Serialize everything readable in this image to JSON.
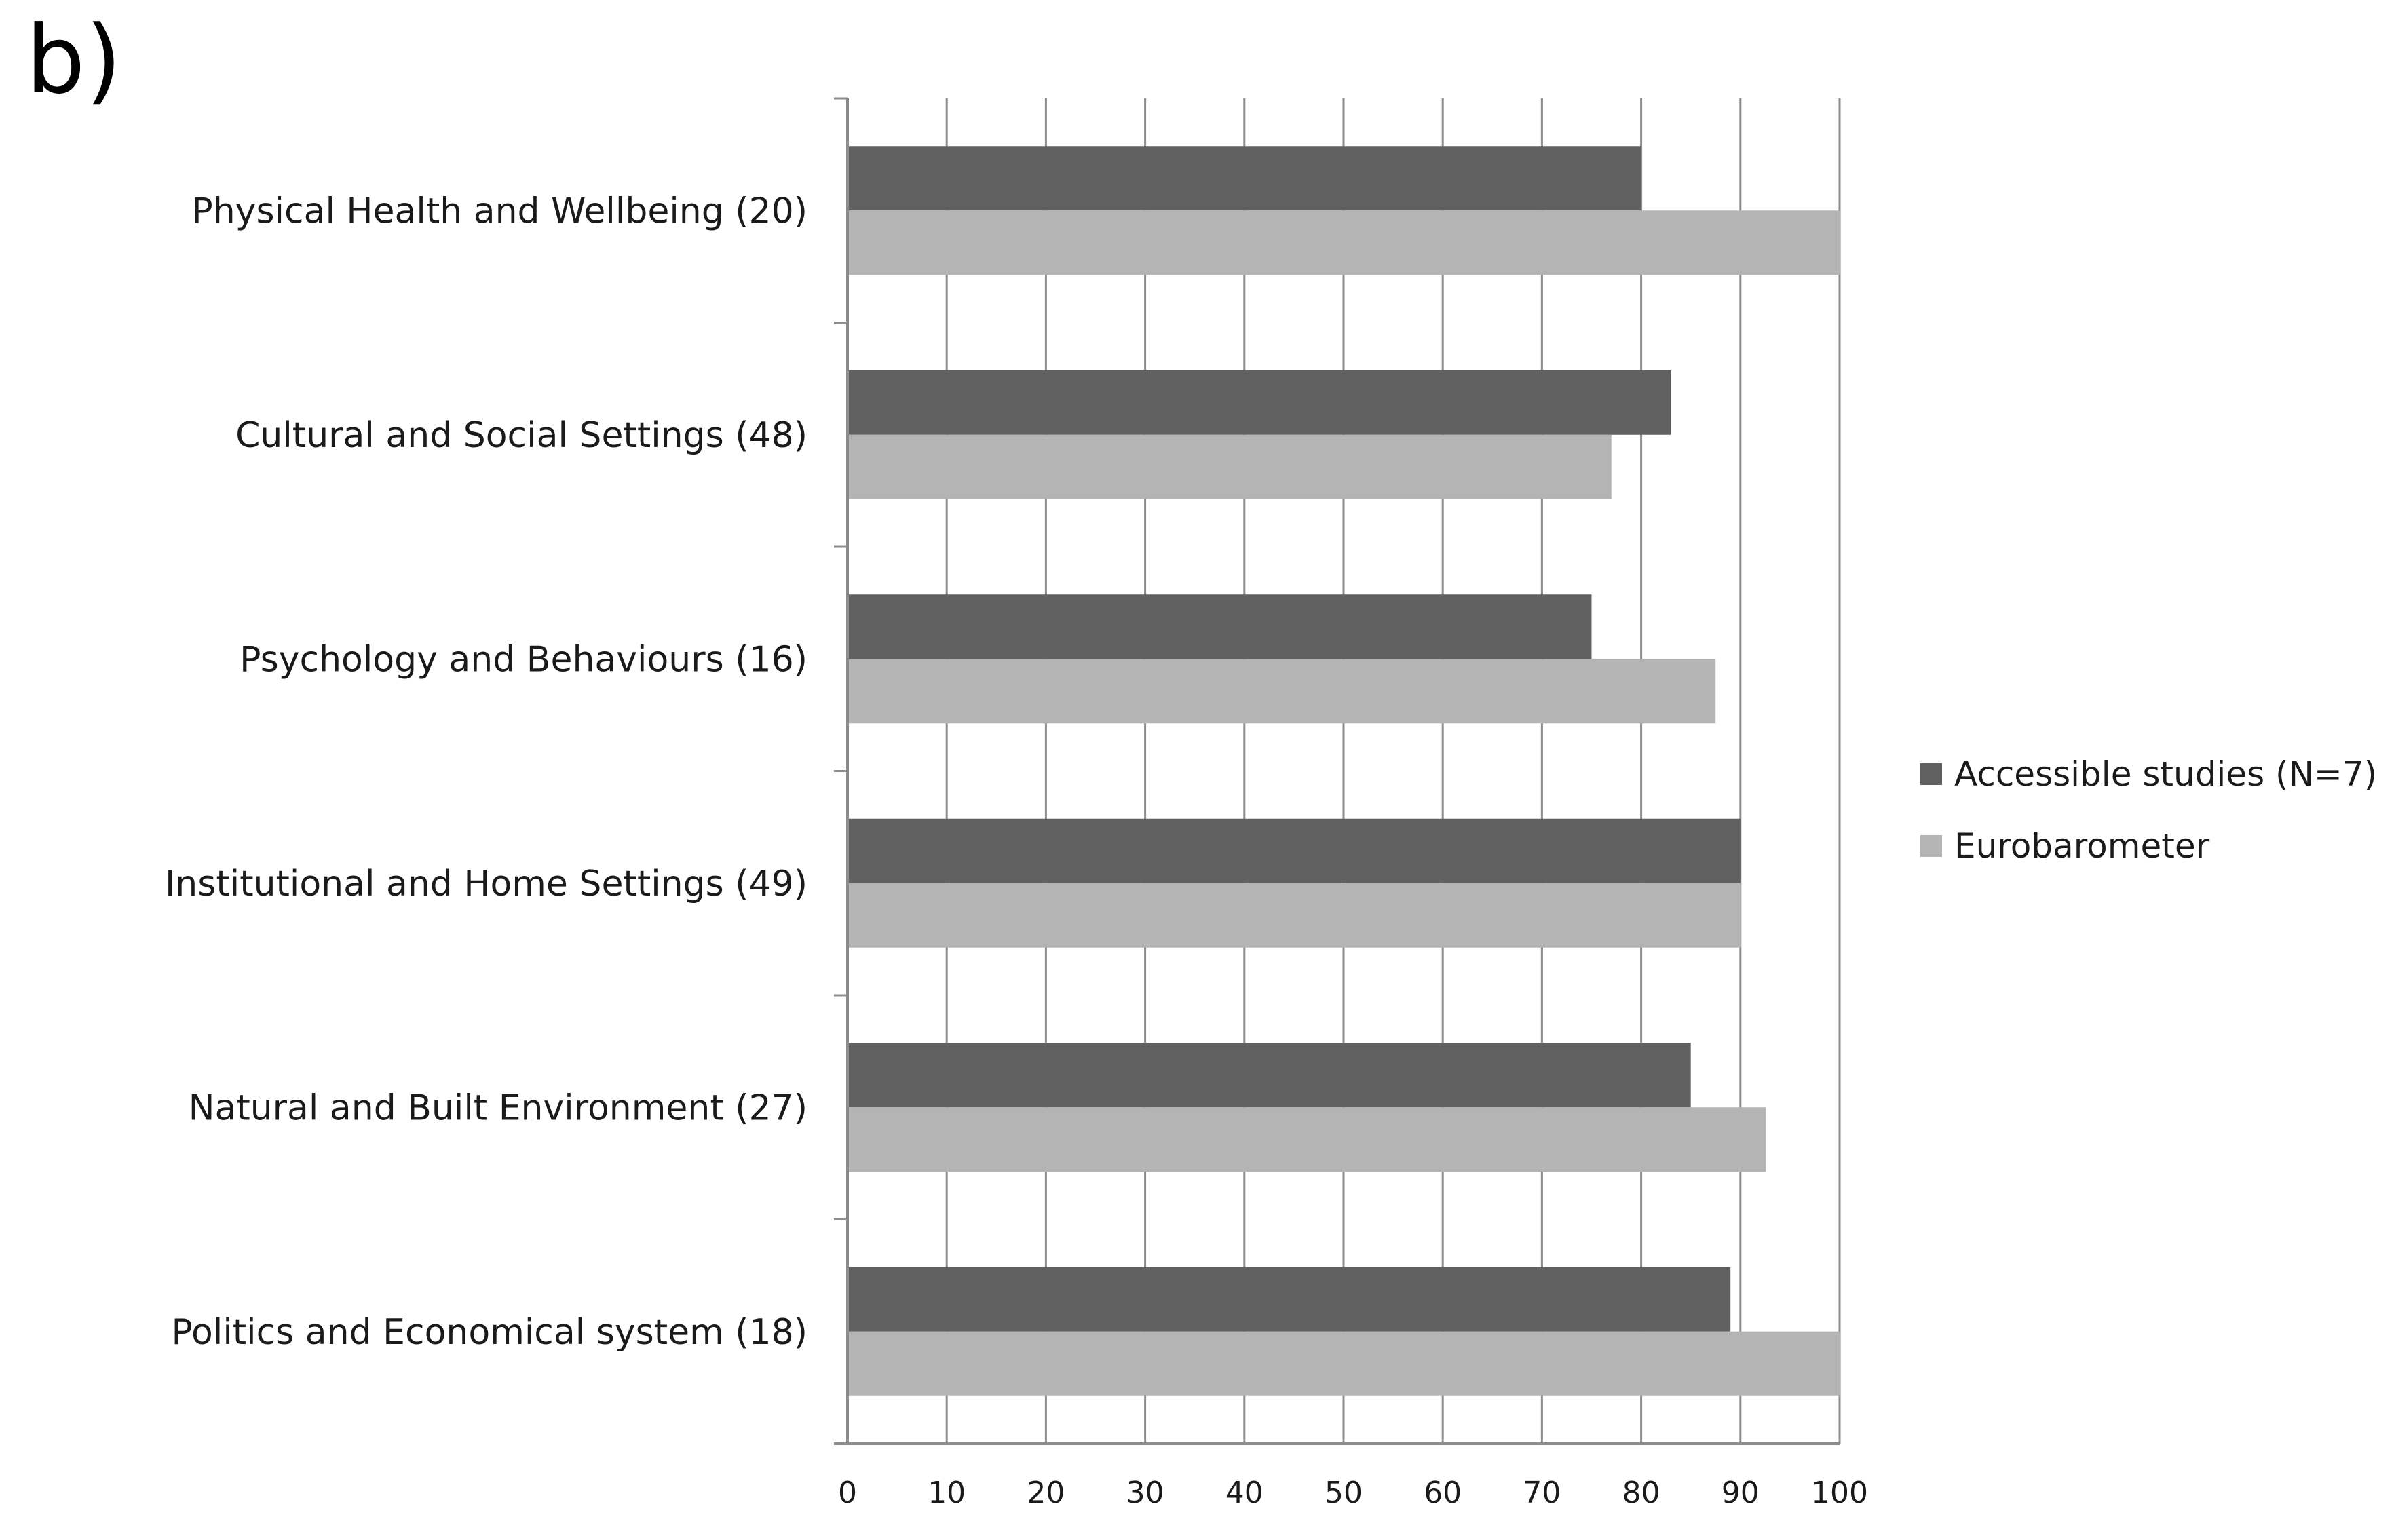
{
  "panel_label": "b)",
  "chart_data": {
    "type": "bar",
    "orientation": "horizontal",
    "categories": [
      "Physical Health and Wellbeing (20)",
      "Cultural and Social Settings (48)",
      "Psychology and Behaviours (16)",
      "Institutional and Home Settings (49)",
      "Natural and Built Environment (27)",
      "Politics and Economical system (18)"
    ],
    "series": [
      {
        "name": "Accessible studies (N=7)",
        "color": "#606060",
        "values": [
          80,
          83,
          75,
          90,
          85,
          89
        ]
      },
      {
        "name": "Eurobarometer",
        "color": "#b4b4b4",
        "values": [
          100,
          77,
          87.5,
          90,
          92.6,
          100
        ]
      }
    ],
    "xlim": [
      0,
      100
    ],
    "xticks": [
      0,
      10,
      20,
      30,
      40,
      50,
      60,
      70,
      80,
      90,
      100
    ],
    "grid": true,
    "legend_position": "right",
    "title": "",
    "xlabel": "",
    "ylabel": ""
  }
}
